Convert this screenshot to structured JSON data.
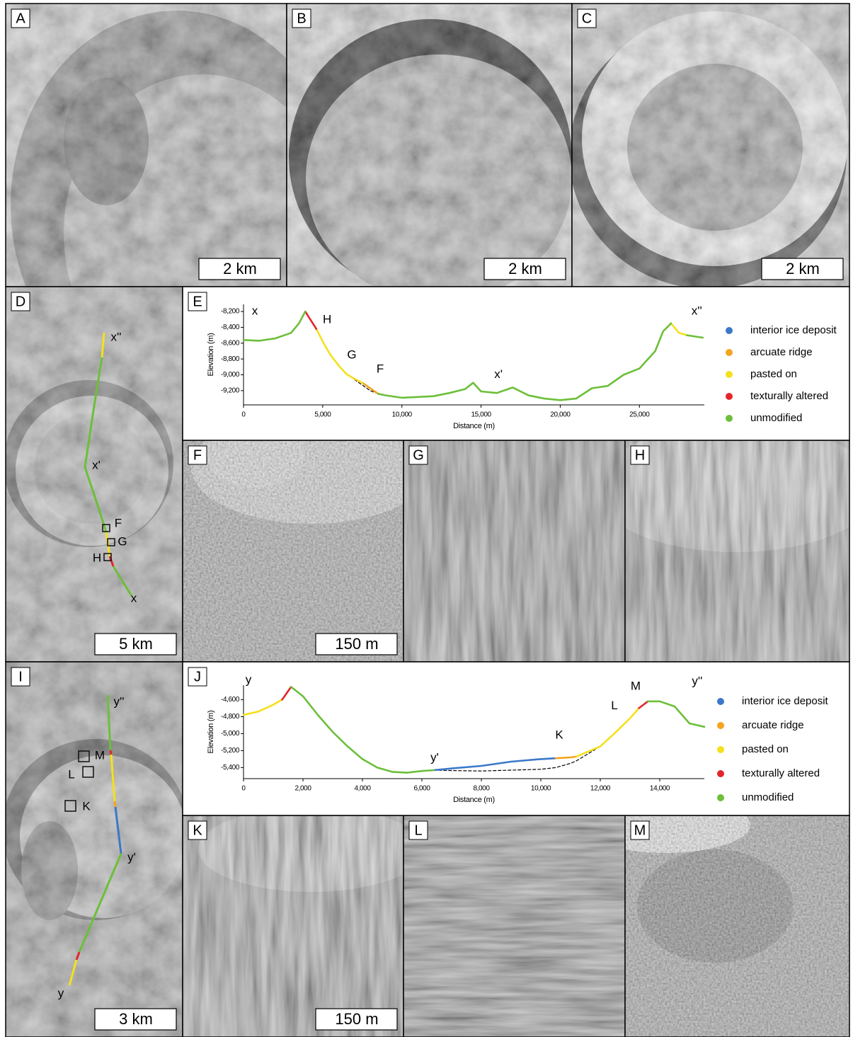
{
  "panels": [
    {
      "label": "A",
      "scale_bar": "2 km"
    },
    {
      "label": "B",
      "scale_bar": "2 km"
    },
    {
      "label": "C",
      "scale_bar": "2 km"
    },
    {
      "label": "D",
      "scale_bar": "5 km",
      "map_labels": [
        "x''",
        "x'",
        "F",
        "G",
        "H",
        "x"
      ]
    },
    {
      "label": "F",
      "scale_bar": "150 m"
    },
    {
      "label": "G"
    },
    {
      "label": "H"
    },
    {
      "label": "I",
      "scale_bar": "3 km",
      "map_labels": [
        "y''",
        "M",
        "L",
        "K",
        "y'",
        "y"
      ]
    },
    {
      "label": "K",
      "scale_bar": "150 m"
    },
    {
      "label": "L"
    },
    {
      "label": "M"
    }
  ],
  "chart_data": [
    {
      "type": "line",
      "panel_label": "E",
      "ylabel": "Elevation (m)",
      "xlabel": "Distance (m)",
      "x": [
        0,
        1000,
        2000,
        3000,
        3500,
        3900,
        4600,
        5000,
        5500,
        6000,
        6500,
        7000,
        7500,
        8000,
        8500,
        9000,
        10000,
        11000,
        12000,
        13000,
        14000,
        14500,
        15000,
        16000,
        17000,
        18000,
        19000,
        20000,
        21000,
        22000,
        23000,
        24000,
        25000,
        26000,
        26500,
        27000,
        27500,
        28000,
        29000
      ],
      "xlim": [
        0,
        29100
      ],
      "ylim": [
        -9380,
        -8110
      ],
      "xticks": [
        0,
        {
          "value": 5000,
          "label": "5,000"
        },
        {
          "value": 10000,
          "label": "10,000"
        },
        {
          "value": 15000,
          "label": "15,000"
        },
        {
          "value": 20000,
          "label": "20,000"
        },
        {
          "value": 25000,
          "label": "25,000"
        }
      ],
      "yticks": [
        {
          "value": -8200,
          "label": "-8,200"
        },
        {
          "value": -8400,
          "label": "-8,400"
        },
        {
          "value": -8600,
          "label": "-8,600"
        },
        {
          "value": -8800,
          "label": "-8,800"
        },
        {
          "value": -9000,
          "label": "-9,000"
        },
        {
          "value": -9200,
          "label": "-9,200"
        }
      ],
      "series": [
        {
          "name": "interior ice deposit",
          "color": "#3b78c9",
          "values": [
            null,
            null,
            null,
            null,
            null,
            null,
            null,
            null,
            null,
            null,
            null,
            null,
            null,
            null,
            null,
            null,
            null,
            null,
            null,
            null,
            null,
            null,
            null,
            null,
            null,
            null,
            null,
            null,
            null,
            null,
            null,
            null,
            null,
            null,
            null,
            null,
            null,
            null,
            null
          ]
        },
        {
          "name": "arcuate ridge",
          "color": "#f4a41f",
          "values": [
            null,
            null,
            null,
            null,
            null,
            null,
            null,
            null,
            null,
            null,
            null,
            null,
            -9100,
            -9170,
            -9240,
            null,
            null,
            null,
            null,
            null,
            null,
            null,
            null,
            null,
            null,
            null,
            null,
            null,
            null,
            null,
            null,
            null,
            null,
            null,
            null,
            null,
            null,
            null,
            null
          ]
        },
        {
          "name": "pasted on",
          "color": "#f5e01c",
          "values": [
            null,
            null,
            null,
            null,
            null,
            null,
            -8420,
            -8580,
            -8750,
            -8880,
            -8990,
            -9050,
            -9100,
            null,
            null,
            null,
            null,
            null,
            null,
            null,
            null,
            null,
            null,
            null,
            null,
            null,
            null,
            null,
            null,
            null,
            null,
            null,
            null,
            null,
            null,
            -8350,
            -8470,
            -8500,
            null
          ]
        },
        {
          "name": "texturally altered",
          "color": "#e3262b",
          "values": [
            null,
            null,
            null,
            null,
            null,
            -8200,
            -8420,
            null,
            null,
            null,
            null,
            null,
            null,
            null,
            null,
            null,
            null,
            null,
            null,
            null,
            null,
            null,
            null,
            null,
            null,
            null,
            null,
            null,
            null,
            null,
            null,
            null,
            null,
            null,
            null,
            null,
            null,
            null,
            null
          ]
        },
        {
          "name": "unmodified",
          "color": "#6cbf3a",
          "values": [
            -8560,
            -8570,
            -8540,
            -8470,
            -8350,
            -8200,
            null,
            null,
            null,
            null,
            null,
            null,
            null,
            null,
            -9240,
            -9260,
            -9290,
            -9280,
            -9270,
            -9230,
            -9180,
            -9100,
            -9210,
            -9230,
            -9160,
            -9260,
            -9300,
            -9320,
            -9300,
            -9170,
            -9140,
            -9000,
            -8920,
            -8700,
            -8450,
            -8350,
            null,
            -8500,
            -8530
          ]
        },
        {
          "color": "#000000",
          "dashed": true,
          "values": [
            null,
            null,
            null,
            null,
            null,
            null,
            null,
            null,
            null,
            null,
            -8990,
            -9060,
            -9130,
            -9200,
            -9240,
            null,
            null,
            null,
            null,
            null,
            null,
            null,
            null,
            null,
            null,
            null,
            null,
            null,
            null,
            null,
            null,
            null,
            null,
            null,
            null,
            null,
            null,
            null,
            null
          ]
        }
      ],
      "annotations": [
        {
          "text": "x",
          "x": 716,
          "y": -8200
        },
        {
          "text": "H",
          "x": 5280,
          "y": -8307
        },
        {
          "text": "G",
          "x": 6840,
          "y": -8754
        },
        {
          "text": "F",
          "x": 8630,
          "y": -8932
        },
        {
          "text": "x'",
          "x": 16100,
          "y": -9000
        },
        {
          "text": "x''",
          "x": 28620,
          "y": -8200
        }
      ]
    },
    {
      "type": "line",
      "panel_label": "J",
      "ylabel": "Elevation (m)",
      "xlabel": "Distance (m)",
      "x": [
        0,
        500,
        1000,
        1300,
        1600,
        2000,
        2500,
        3000,
        3500,
        4000,
        4500,
        5000,
        5500,
        6000,
        6400,
        7000,
        8000,
        9000,
        10000,
        10500,
        11000,
        11200,
        12000,
        12500,
        13000,
        13300,
        13600,
        14000,
        14500,
        15000,
        15500
      ],
      "xlim": [
        0,
        15500
      ],
      "ylim": [
        -5530,
        -4430
      ],
      "xticks": [
        0,
        {
          "value": 2000,
          "label": "2,000"
        },
        {
          "value": 4000,
          "label": "4,000"
        },
        {
          "value": 6000,
          "label": "6,000"
        },
        {
          "value": 8000,
          "label": "8,000"
        },
        {
          "value": 10000,
          "label": "10,000"
        },
        {
          "value": 12000,
          "label": "12,000"
        },
        {
          "value": 14000,
          "label": "14,000"
        }
      ],
      "yticks": [
        {
          "value": -4600,
          "label": "-4,600"
        },
        {
          "value": -4800,
          "label": "-4,800"
        },
        {
          "value": -5000,
          "label": "-5,000"
        },
        {
          "value": -5200,
          "label": "-5,200"
        },
        {
          "value": -5400,
          "label": "-5,400"
        }
      ],
      "series": [
        {
          "name": "interior ice deposit",
          "color": "#3b78c9",
          "values": [
            null,
            null,
            null,
            null,
            null,
            null,
            null,
            null,
            null,
            null,
            null,
            null,
            null,
            null,
            -5430,
            -5410,
            -5380,
            -5330,
            -5300,
            -5290,
            null,
            null,
            null,
            null,
            null,
            null,
            null,
            null,
            null,
            null,
            null
          ]
        },
        {
          "name": "arcuate ridge",
          "color": "#f4a41f",
          "values": [
            null,
            null,
            null,
            null,
            null,
            null,
            null,
            null,
            null,
            null,
            null,
            null,
            null,
            null,
            null,
            null,
            null,
            null,
            null,
            -5290,
            -5280,
            -5270,
            null,
            null,
            null,
            null,
            null,
            null,
            null,
            null,
            null
          ]
        },
        {
          "name": "pasted on",
          "color": "#f5e01c",
          "values": [
            -4780,
            -4740,
            -4660,
            -4600,
            null,
            null,
            null,
            null,
            null,
            null,
            null,
            null,
            null,
            null,
            null,
            null,
            null,
            null,
            null,
            null,
            null,
            -5270,
            -5150,
            -4990,
            -4820,
            -4700,
            null,
            null,
            null,
            null,
            null
          ]
        },
        {
          "name": "texturally altered",
          "color": "#e3262b",
          "values": [
            null,
            null,
            null,
            -4600,
            -4450,
            null,
            null,
            null,
            null,
            null,
            null,
            null,
            null,
            null,
            null,
            null,
            null,
            null,
            null,
            null,
            null,
            null,
            null,
            null,
            null,
            -4700,
            -4620,
            null,
            null,
            null,
            null
          ]
        },
        {
          "name": "unmodified",
          "color": "#6cbf3a",
          "values": [
            null,
            null,
            null,
            null,
            -4450,
            -4560,
            -4780,
            -4980,
            -5150,
            -5300,
            -5400,
            -5450,
            -5460,
            -5440,
            -5430,
            null,
            null,
            null,
            null,
            null,
            null,
            null,
            null,
            null,
            null,
            null,
            -4620,
            -4620,
            -4680,
            -4880,
            -4920
          ]
        },
        {
          "color": "#000000",
          "dashed": true,
          "values": [
            null,
            null,
            null,
            null,
            null,
            null,
            null,
            null,
            null,
            null,
            null,
            null,
            null,
            null,
            -5430,
            -5435,
            -5440,
            -5430,
            -5420,
            -5400,
            -5350,
            -5320,
            -5150,
            null,
            null,
            null,
            null,
            null,
            null,
            null,
            null
          ]
        }
      ],
      "annotations": [
        {
          "text": "y",
          "x": 167,
          "y": -4373
        },
        {
          "text": "y'",
          "x": 6430,
          "y": -5290
        },
        {
          "text": "K",
          "x": 10620,
          "y": -5021
        },
        {
          "text": "L",
          "x": 12476,
          "y": -4676
        },
        {
          "text": "M",
          "x": 13190,
          "y": -4448
        },
        {
          "text": "y''",
          "x": 15260,
          "y": -4390
        }
      ]
    }
  ]
}
